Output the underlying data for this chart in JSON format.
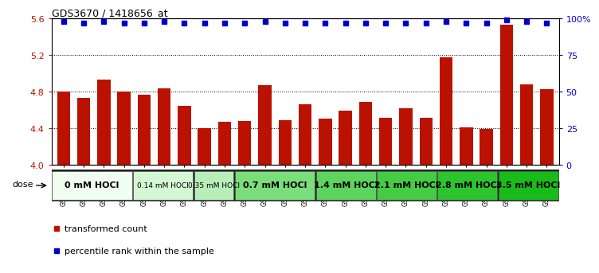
{
  "title": "GDS3670 / 1418656_at",
  "samples": [
    "GSM387601",
    "GSM387602",
    "GSM387605",
    "GSM387606",
    "GSM387645",
    "GSM387646",
    "GSM387647",
    "GSM387648",
    "GSM387649",
    "GSM387676",
    "GSM387677",
    "GSM387678",
    "GSM387679",
    "GSM387698",
    "GSM387699",
    "GSM387700",
    "GSM387701",
    "GSM387702",
    "GSM387703",
    "GSM387713",
    "GSM387714",
    "GSM387716",
    "GSM387750",
    "GSM387751",
    "GSM387752"
  ],
  "bar_values": [
    4.8,
    4.73,
    4.93,
    4.8,
    4.77,
    4.84,
    4.65,
    4.4,
    4.47,
    4.48,
    4.87,
    4.49,
    4.66,
    4.51,
    4.59,
    4.69,
    4.52,
    4.62,
    4.52,
    5.18,
    4.41,
    4.39,
    5.53,
    4.88,
    4.83
  ],
  "percentile_values": [
    98,
    97,
    98,
    97,
    97,
    98,
    97,
    97,
    97,
    97,
    98,
    97,
    97,
    97,
    97,
    97,
    97,
    97,
    97,
    98,
    97,
    97,
    99,
    98,
    97
  ],
  "dose_groups": [
    {
      "label": "0 mM HOCl",
      "start": 0,
      "end": 4,
      "color": "#f0fff0",
      "fontsize": 8,
      "bold": true
    },
    {
      "label": "0.14 mM HOCl",
      "start": 4,
      "end": 7,
      "color": "#d4f7d4",
      "fontsize": 6.5,
      "bold": false
    },
    {
      "label": "0.35 mM HOCl",
      "start": 7,
      "end": 9,
      "color": "#b8efb8",
      "fontsize": 6.5,
      "bold": false
    },
    {
      "label": "0.7 mM HOCl",
      "start": 9,
      "end": 13,
      "color": "#7ade7a",
      "fontsize": 8,
      "bold": true
    },
    {
      "label": "1.4 mM HOCl",
      "start": 13,
      "end": 16,
      "color": "#5dd45d",
      "fontsize": 8,
      "bold": true
    },
    {
      "label": "2.1 mM HOCl",
      "start": 16,
      "end": 19,
      "color": "#45cc45",
      "fontsize": 8,
      "bold": true
    },
    {
      "label": "2.8 mM HOCl",
      "start": 19,
      "end": 22,
      "color": "#2ec42e",
      "fontsize": 8,
      "bold": true
    },
    {
      "label": "3.5 mM HOCl",
      "start": 22,
      "end": 25,
      "color": "#18bc18",
      "fontsize": 8,
      "bold": true
    }
  ],
  "bar_color": "#bb1100",
  "percentile_color": "#0000cc",
  "ymin": 4.0,
  "ymax": 5.6,
  "yticks_left": [
    4.0,
    4.4,
    4.8,
    5.2,
    5.6
  ],
  "yticks_right": [
    0,
    25,
    50,
    75,
    100
  ],
  "yticklabels_right": [
    "0",
    "25",
    "50",
    "75",
    "100%"
  ],
  "percentile_marker_size": 4.0
}
